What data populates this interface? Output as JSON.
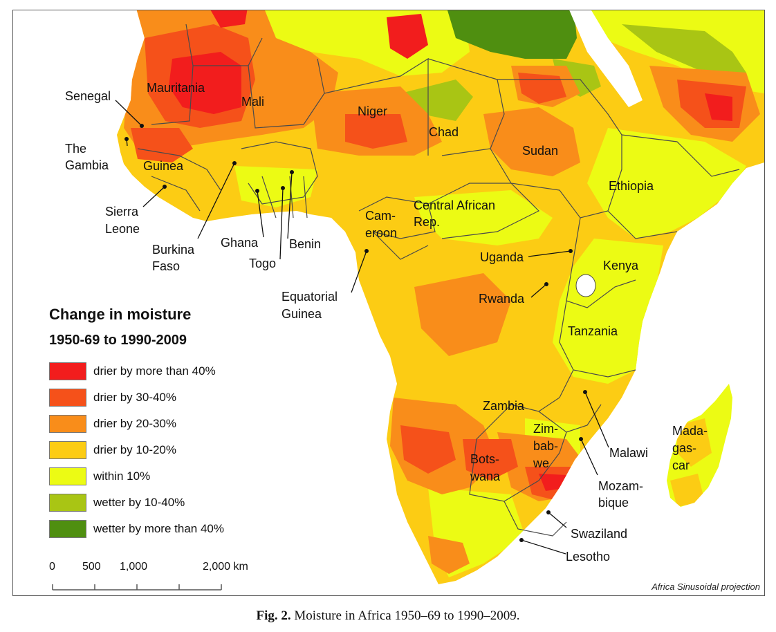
{
  "legend": {
    "title": "Change in moisture",
    "subtitle": "1950-69 to 1990-2009",
    "items": [
      {
        "label": "drier by more than 40%",
        "color": "#f21d1d"
      },
      {
        "label": "drier by 30-40%",
        "color": "#f5511a"
      },
      {
        "label": "drier by 20-30%",
        "color": "#f98d1a"
      },
      {
        "label": "drier by 10-20%",
        "color": "#fccc14"
      },
      {
        "label": "within 10%",
        "color": "#ecfb14"
      },
      {
        "label": "wetter by 10-40%",
        "color": "#a9c514"
      },
      {
        "label": "wetter by more than 40%",
        "color": "#4f8f10"
      }
    ]
  },
  "scale": {
    "ticks": [
      "0",
      "500",
      "1,000",
      "2,000 km"
    ],
    "tick_values_km": [
      0,
      500,
      1000,
      2000
    ]
  },
  "projection_note": "Africa Sinusoidal projection",
  "caption": {
    "prefix": "Fig. 2.",
    "text": "Moisture in Africa 1950–69 to 1990–2009."
  },
  "country_labels": {
    "senegal": "Senegal",
    "the_gambia": [
      "The",
      "Gambia"
    ],
    "mauritania": "Mauritania",
    "mali": "Mali",
    "niger": "Niger",
    "chad": "Chad",
    "sudan": "Sudan",
    "ethiopia": "Ethiopia",
    "guinea": "Guinea",
    "sierra_leone": [
      "Sierra",
      "Leone"
    ],
    "burkina_faso": [
      "Burkina",
      "Faso"
    ],
    "ghana": "Ghana",
    "togo": "Togo",
    "benin": "Benin",
    "cameroon": [
      "Cam-",
      "eroon"
    ],
    "central_african_rep": [
      "Central African",
      "Rep."
    ],
    "equatorial_guinea": [
      "Equatorial",
      "Guinea"
    ],
    "uganda": "Uganda",
    "kenya": "Kenya",
    "rwanda": "Rwanda",
    "tanzania": "Tanzania",
    "zambia": "Zambia",
    "zimbabwe": [
      "Zim-",
      "bab-",
      "we"
    ],
    "malawi": "Malawi",
    "mozambique": [
      "Mozam-",
      "bique"
    ],
    "botswana": [
      "Bots-",
      "wana"
    ],
    "madagascar": [
      "Mada-",
      "gas-",
      "car"
    ],
    "swaziland": "Swaziland",
    "lesotho": "Lesotho"
  }
}
